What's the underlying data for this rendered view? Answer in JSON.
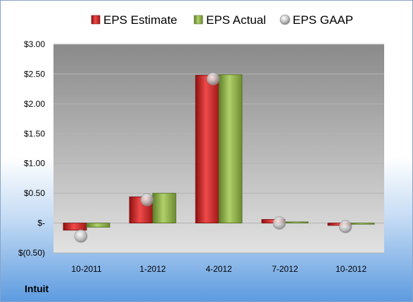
{
  "company": "Intuit",
  "chart_data": {
    "type": "bar",
    "categories": [
      "10-2011",
      "1-2012",
      "4-2012",
      "7-2012",
      "10-2012"
    ],
    "series": [
      {
        "name": "EPS Estimate",
        "kind": "bar",
        "color": "#d42a2a",
        "values": [
          -0.12,
          0.44,
          2.48,
          0.06,
          -0.04
        ]
      },
      {
        "name": "EPS Actual",
        "kind": "bar",
        "color": "#8db04a",
        "values": [
          -0.07,
          0.5,
          2.49,
          0.02,
          -0.02
        ]
      },
      {
        "name": "EPS GAAP",
        "kind": "marker",
        "color": "#b8b8b8",
        "values": [
          -0.22,
          0.39,
          2.42,
          0.0,
          -0.06
        ]
      }
    ],
    "ylim": [
      -0.5,
      3.0
    ],
    "yticks": [
      3.0,
      2.5,
      2.0,
      1.5,
      1.0,
      0.5,
      0,
      -0.5
    ],
    "ytick_labels": [
      "$3.00",
      "$2.50",
      "$2.00",
      "$1.50",
      "$1.00",
      "$0.50",
      "$-",
      "$(0.50)"
    ],
    "legend_position": "top",
    "grid": true
  }
}
